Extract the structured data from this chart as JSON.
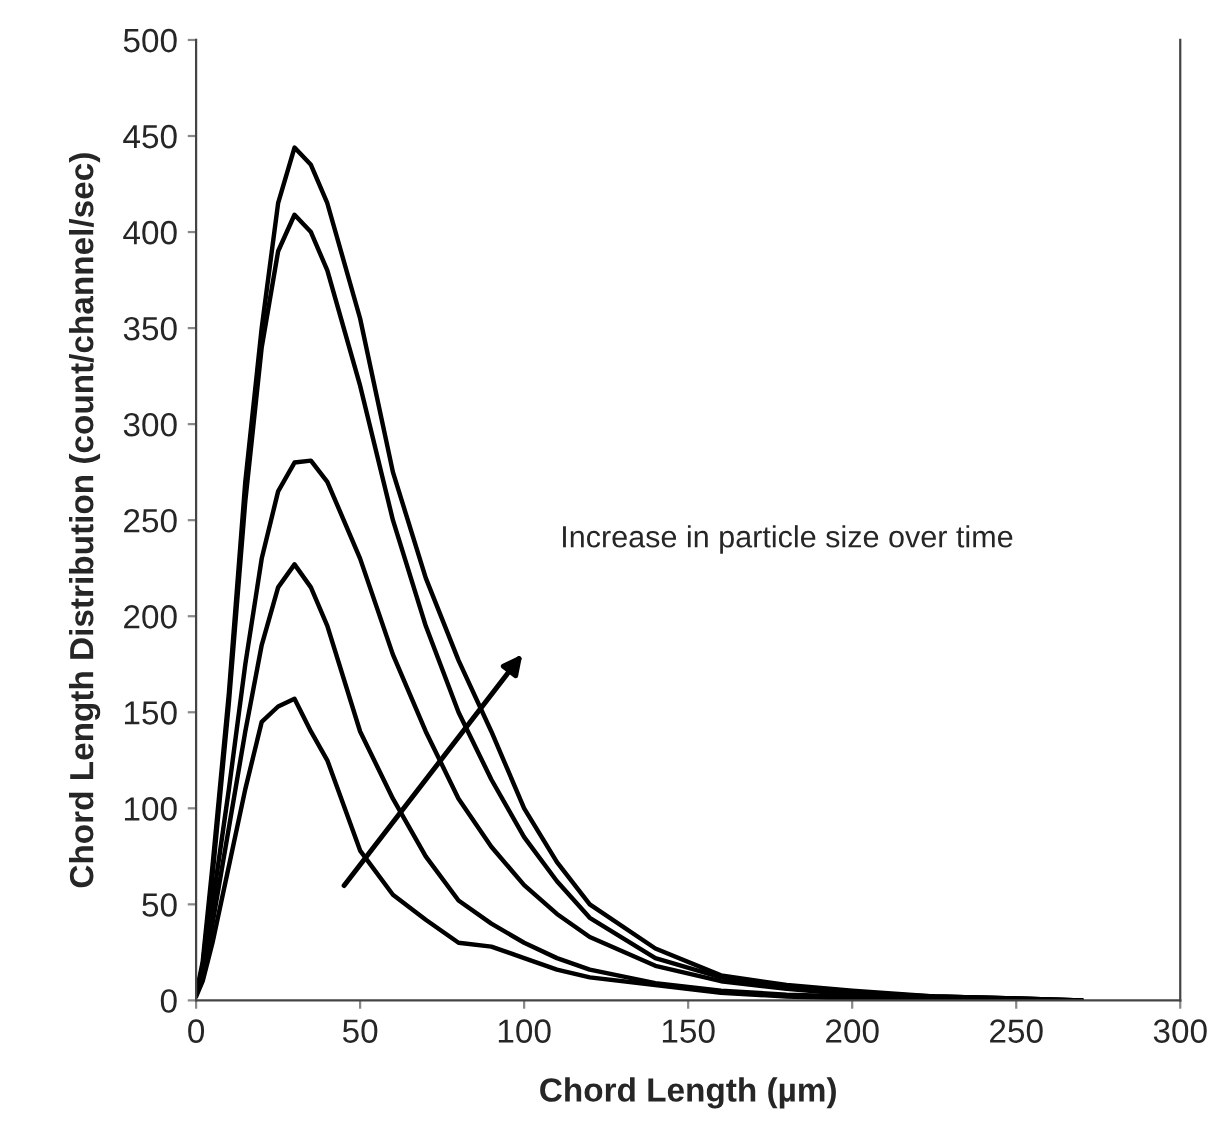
{
  "chart_data": {
    "type": "line",
    "xlabel": "Chord Length (µm)",
    "ylabel": "Chord Length Distribution (count/channel/sec)",
    "x": [
      0,
      2,
      5,
      10,
      15,
      20,
      25,
      30,
      35,
      40,
      50,
      60,
      70,
      80,
      90,
      100,
      110,
      120,
      140,
      160,
      180,
      200,
      225,
      250,
      270
    ],
    "series": [
      {
        "color": "#000000",
        "values": [
          3,
          20,
          70,
          160,
          270,
          350,
          415,
          444,
          435,
          415,
          355,
          275,
          220,
          177,
          140,
          100,
          72,
          50,
          27,
          13,
          8,
          5,
          2,
          1,
          0
        ]
      },
      {
        "color": "#000000",
        "values": [
          3,
          18,
          65,
          155,
          260,
          340,
          390,
          409,
          400,
          380,
          320,
          250,
          195,
          150,
          115,
          85,
          62,
          43,
          22,
          12,
          7,
          4,
          2,
          1,
          0
        ]
      },
      {
        "color": "#000000",
        "values": [
          3,
          15,
          50,
          110,
          175,
          230,
          265,
          280,
          281,
          270,
          230,
          180,
          140,
          105,
          80,
          60,
          45,
          33,
          18,
          10,
          6,
          3,
          2,
          1,
          0
        ]
      },
      {
        "color": "#000000",
        "values": [
          3,
          12,
          40,
          90,
          140,
          185,
          215,
          227,
          215,
          195,
          140,
          105,
          75,
          52,
          40,
          30,
          22,
          16,
          9,
          5,
          3,
          2,
          1,
          0,
          0
        ]
      },
      {
        "color": "#000000",
        "values": [
          2,
          10,
          30,
          70,
          110,
          145,
          153,
          157,
          140,
          125,
          78,
          55,
          42,
          30,
          28,
          22,
          16,
          12,
          8,
          4,
          2,
          1,
          1,
          0,
          0
        ]
      }
    ],
    "xlim": [
      0,
      300
    ],
    "xticks": [
      0,
      50,
      100,
      150,
      200,
      250,
      300
    ],
    "ylim": [
      0,
      500
    ],
    "yticks": [
      0,
      50,
      100,
      150,
      200,
      250,
      300,
      350,
      400,
      450,
      500
    ],
    "grid": false,
    "legend": false,
    "marker": "none",
    "line_style": "solid",
    "annotations": [
      "Increase in particle size over time"
    ]
  }
}
